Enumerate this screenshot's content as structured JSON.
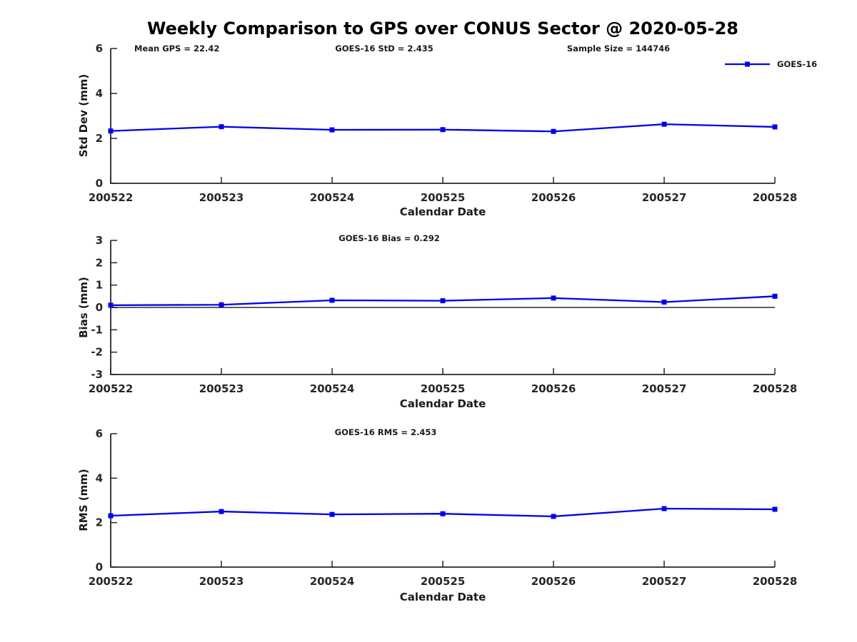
{
  "figure_title": "Weekly Comparison to GPS over CONUS Sector @ 2020-05-28",
  "legend": {
    "label": "GOES-16"
  },
  "colors": {
    "series": "#0000EE",
    "axis": "#262626",
    "text": "#1a1a1a",
    "zero_line": "#000000"
  },
  "chart_data": [
    {
      "type": "line",
      "name": "std-dev",
      "ylabel": "Std Dev (mm)",
      "xlabel": "Calendar Date",
      "ylim": [
        0,
        6
      ],
      "yticks": [
        0,
        2,
        4,
        6
      ],
      "categories": [
        "200522",
        "200523",
        "200524",
        "200525",
        "200526",
        "200527",
        "200528"
      ],
      "series": [
        {
          "name": "GOES-16",
          "values": [
            2.33,
            2.52,
            2.38,
            2.39,
            2.31,
            2.63,
            2.51
          ]
        }
      ],
      "annotations": [
        {
          "text": "Mean GPS = 22.42"
        },
        {
          "text": "GOES-16 StD = 2.435"
        },
        {
          "text": "Sample Size = 144746"
        }
      ],
      "legend_position": "upper-right",
      "grid": false,
      "zero_line": false
    },
    {
      "type": "line",
      "name": "bias",
      "ylabel": "Bias (mm)",
      "xlabel": "Calendar Date",
      "ylim": [
        -3,
        3
      ],
      "yticks": [
        -3,
        -2,
        -1,
        0,
        1,
        2,
        3
      ],
      "categories": [
        "200522",
        "200523",
        "200524",
        "200525",
        "200526",
        "200527",
        "200528"
      ],
      "series": [
        {
          "name": "GOES-16",
          "values": [
            0.1,
            0.12,
            0.32,
            0.3,
            0.42,
            0.24,
            0.5
          ]
        }
      ],
      "annotations": [
        {
          "text": "GOES-16 Bias  = 0.292"
        }
      ],
      "grid": false,
      "zero_line": true
    },
    {
      "type": "line",
      "name": "rms",
      "ylabel": "RMS (mm)",
      "xlabel": "Calendar Date",
      "ylim": [
        0,
        6
      ],
      "yticks": [
        0,
        2,
        4,
        6
      ],
      "categories": [
        "200522",
        "200523",
        "200524",
        "200525",
        "200526",
        "200527",
        "200528"
      ],
      "series": [
        {
          "name": "GOES-16",
          "values": [
            2.31,
            2.5,
            2.37,
            2.4,
            2.28,
            2.63,
            2.6
          ]
        }
      ],
      "annotations": [
        {
          "text": "GOES-16 RMS = 2.453"
        }
      ],
      "grid": false,
      "zero_line": false
    }
  ]
}
